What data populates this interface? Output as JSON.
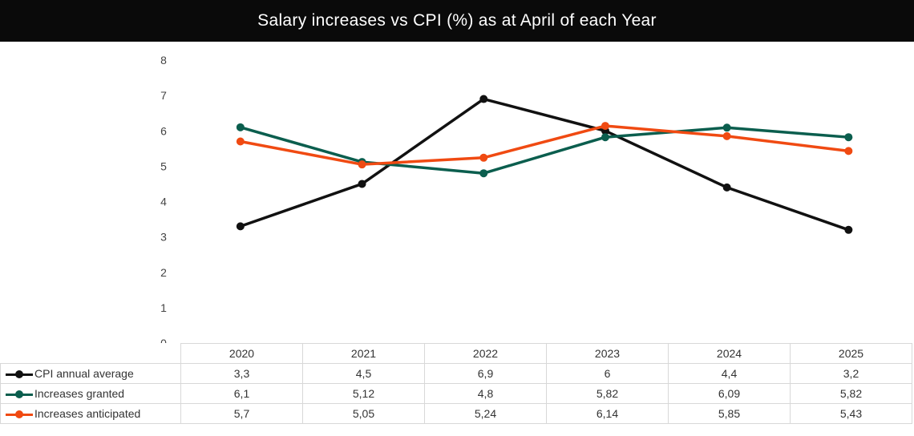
{
  "chart_data": {
    "type": "line",
    "title": "Salary increases vs CPI (%) as at April of each Year",
    "xlabel": "",
    "ylabel": "",
    "ylim": [
      0,
      8
    ],
    "yticks": [
      "0",
      "1",
      "2",
      "3",
      "4",
      "5",
      "6",
      "7",
      "8"
    ],
    "grid": false,
    "legend": "data-table-left",
    "categories": [
      "2020",
      "2021",
      "2022",
      "2023",
      "2024",
      "2025"
    ],
    "series": [
      {
        "name": "CPI annual average",
        "color": "#111111",
        "values": [
          3.3,
          4.5,
          6.9,
          6,
          4.4,
          3.2
        ],
        "labels": [
          "3,3",
          "4,5",
          "6,9",
          "6",
          "4,4",
          "3,2"
        ]
      },
      {
        "name": "Increases granted",
        "color": "#0b5e4e",
        "values": [
          6.1,
          5.12,
          4.8,
          5.82,
          6.09,
          5.82
        ],
        "labels": [
          "6,1",
          "5,12",
          "4,8",
          "5,82",
          "6,09",
          "5,82"
        ]
      },
      {
        "name": "Increases anticipated",
        "color": "#f04a12",
        "values": [
          5.7,
          5.05,
          5.24,
          6.14,
          5.85,
          5.43
        ],
        "labels": [
          "5,7",
          "5,05",
          "5,24",
          "6,14",
          "5,85",
          "5,43"
        ]
      }
    ]
  }
}
